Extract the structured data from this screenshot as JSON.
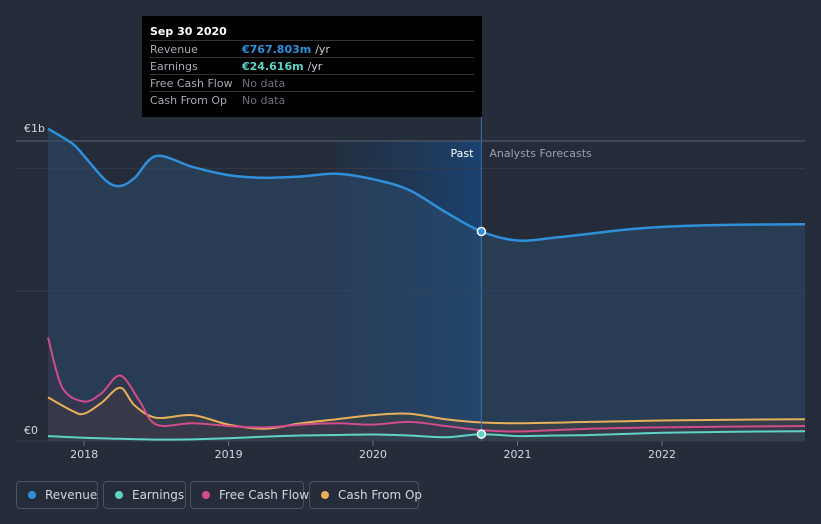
{
  "colors": {
    "revenue": "#2f8fd8",
    "earnings": "#5fd3c6",
    "fcf": "#d04c8a",
    "cfo": "#e8b05a",
    "background": "#262d3a"
  },
  "tooltip": {
    "date": "Sep 30 2020",
    "rows": [
      {
        "label": "Revenue",
        "value": "€767.803m",
        "unit": "/yr",
        "color": "#2f8fd8"
      },
      {
        "label": "Earnings",
        "value": "€24.616m",
        "unit": "/yr",
        "color": "#5fd3c6"
      },
      {
        "label": "Free Cash Flow",
        "value": "No data"
      },
      {
        "label": "Cash From Op",
        "value": "No data"
      }
    ]
  },
  "legend": [
    {
      "label": "Revenue",
      "icon": "revenue-dot-icon",
      "color": "#2f8fd8"
    },
    {
      "label": "Earnings",
      "icon": "earnings-dot-icon",
      "color": "#5fd3c6"
    },
    {
      "label": "Free Cash Flow",
      "icon": "fcf-dot-icon",
      "color": "#d04c8a"
    },
    {
      "label": "Cash From Op",
      "icon": "cfo-dot-icon",
      "color": "#e8b05a"
    }
  ],
  "chart_data": {
    "type": "area",
    "title": "",
    "xlabel": "",
    "ylabel": "",
    "xlim": [
      2017.75,
      2022.99
    ],
    "ylim": [
      0,
      1100
    ],
    "y_tick_labels": [
      {
        "value": 0,
        "label": "€0"
      },
      {
        "value": 1100,
        "label": "€1b"
      }
    ],
    "x_ticks": [
      {
        "value": 2018,
        "label": "2018"
      },
      {
        "value": 2019,
        "label": "2019"
      },
      {
        "value": 2020,
        "label": "2020"
      },
      {
        "value": 2021,
        "label": "2021"
      },
      {
        "value": 2022,
        "label": "2022"
      }
    ],
    "divider": {
      "x": 2020.75,
      "past_label": "Past",
      "forecast_label": "Analysts Forecasts"
    },
    "highlight": {
      "from": 2019.75,
      "to": 2020.75
    },
    "series": [
      {
        "name": "Revenue",
        "key": "revenue",
        "x": [
          2017.75,
          2017.92,
          2018.0,
          2018.15,
          2018.25,
          2018.35,
          2018.5,
          2018.75,
          2019.0,
          2019.25,
          2019.5,
          2019.75,
          2020.0,
          2020.25,
          2020.5,
          2020.75,
          2021.0,
          2021.25,
          2021.5,
          2021.75,
          2022.0,
          2022.25,
          2022.5,
          2022.99
        ],
        "y": [
          1145,
          1090,
          1045,
          955,
          935,
          965,
          1045,
          1005,
          975,
          965,
          970,
          980,
          960,
          920,
          840,
          768,
          735,
          745,
          760,
          775,
          785,
          790,
          793,
          795
        ]
      },
      {
        "name": "Earnings",
        "key": "earnings",
        "x": [
          2017.75,
          2018.0,
          2018.25,
          2018.5,
          2018.75,
          2019.0,
          2019.25,
          2019.5,
          2019.75,
          2020.0,
          2020.25,
          2020.5,
          2020.75,
          2021.0,
          2021.25,
          2021.5,
          2021.75,
          2022.0,
          2022.5,
          2022.99
        ],
        "y": [
          18,
          12,
          8,
          5,
          6,
          10,
          16,
          20,
          22,
          24,
          20,
          14,
          25,
          18,
          20,
          22,
          26,
          30,
          34,
          36
        ]
      },
      {
        "name": "Free Cash Flow",
        "key": "fcf",
        "x": [
          2017.75,
          2017.85,
          2018.0,
          2018.12,
          2018.25,
          2018.38,
          2018.5,
          2018.75,
          2019.0,
          2019.25,
          2019.5,
          2019.75,
          2020.0,
          2020.25,
          2020.5,
          2020.75,
          2021.0,
          2021.5,
          2022.0,
          2022.99
        ],
        "y": [
          380,
          195,
          145,
          175,
          240,
          150,
          60,
          65,
          55,
          50,
          60,
          65,
          60,
          70,
          55,
          40,
          35,
          45,
          50,
          55
        ]
      },
      {
        "name": "Cash From Op",
        "key": "cfo",
        "x": [
          2017.75,
          2017.92,
          2018.0,
          2018.12,
          2018.25,
          2018.35,
          2018.5,
          2018.75,
          2019.0,
          2019.25,
          2019.5,
          2019.75,
          2020.0,
          2020.25,
          2020.5,
          2020.75,
          2021.0,
          2021.5,
          2022.0,
          2022.5,
          2022.99
        ],
        "y": [
          160,
          110,
          100,
          140,
          195,
          130,
          85,
          95,
          60,
          45,
          65,
          80,
          95,
          100,
          80,
          68,
          65,
          70,
          75,
          78,
          80
        ]
      }
    ]
  }
}
